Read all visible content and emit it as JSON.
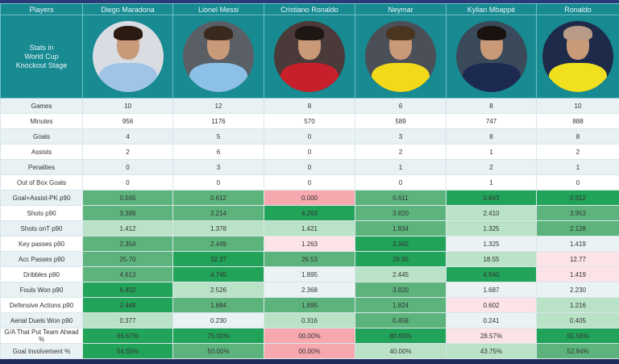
{
  "header": {
    "players_label": "Players",
    "stats_label_lines": [
      "Stats in",
      "World Cup",
      "Knockout Stage"
    ],
    "players": [
      {
        "name": "Diego Maradona",
        "photo": "maradona-photo",
        "bg": "#d9dde3",
        "shirt": "#9fc4e8",
        "hair": "#2a1a12"
      },
      {
        "name": "Lionel Messi",
        "photo": "messi-photo",
        "bg": "#5a5f66",
        "shirt": "#8cc0e6",
        "hair": "#3a2a1e"
      },
      {
        "name": "Cristiano Ronaldo",
        "photo": "cristiano-photo",
        "bg": "#4a3a3a",
        "shirt": "#c8202a",
        "hair": "#1e1612"
      },
      {
        "name": "Neymar",
        "photo": "neymar-photo",
        "bg": "#4a4f58",
        "shirt": "#f2d91a",
        "hair": "#4a3520"
      },
      {
        "name": "Kylian Mbappé",
        "photo": "mbappe-photo",
        "bg": "#3b4a5a",
        "shirt": "#1c2a52",
        "hair": "#1a120e"
      },
      {
        "name": "Ronaldo",
        "photo": "ronaldo-photo",
        "bg": "#1e2a4a",
        "shirt": "#f0e020",
        "hair": "#b89a88"
      }
    ]
  },
  "colors": {
    "header_teal": "#178a92",
    "navy": "#1e2a5a",
    "green_strong": "#22a35a",
    "green_mid": "#5cb47c",
    "green_light": "#b9e2c6",
    "neutral": "#eaf2f4",
    "pink_light": "#fbe3e7",
    "pink": "#f6a8ae"
  },
  "rows": [
    {
      "label": "Games",
      "values": [
        "10",
        "12",
        "8",
        "6",
        "8",
        "10"
      ],
      "colors": null
    },
    {
      "label": "Minutes",
      "values": [
        "956",
        "1176",
        "570",
        "589",
        "747",
        "888"
      ],
      "colors": null
    },
    {
      "label": "Goals",
      "values": [
        "4",
        "5",
        "0",
        "3",
        "8",
        "8"
      ],
      "colors": null
    },
    {
      "label": "Assists",
      "values": [
        "2",
        "6",
        "0",
        "2",
        "1",
        "2"
      ],
      "colors": null
    },
    {
      "label": "Penalties",
      "values": [
        "0",
        "3",
        "0",
        "1",
        "2",
        "1"
      ],
      "colors": null
    },
    {
      "label": "Out of Box Goals",
      "values": [
        "0",
        "0",
        "0",
        "0",
        "1",
        "0"
      ],
      "colors": null
    },
    {
      "label": "Goal+Assist-PK p90",
      "values": [
        "0.565",
        "0.612",
        "0.000",
        "0.611",
        "0.843",
        "0.912"
      ],
      "colors": [
        "#5cb47c",
        "#5cb47c",
        "#f6a8ae",
        "#5cb47c",
        "#22a35a",
        "#22a35a"
      ]
    },
    {
      "label": "Shots p90",
      "values": [
        "3.389",
        "3.214",
        "4.263",
        "3.820",
        "2.410",
        "3.953"
      ],
      "colors": [
        "#5cb47c",
        "#5cb47c",
        "#22a35a",
        "#5cb47c",
        "#b9e2c6",
        "#5cb47c"
      ]
    },
    {
      "label": "Shots onT p90",
      "values": [
        "1.412",
        "1.378",
        "1.421",
        "1.834",
        "1.325",
        "2.128"
      ],
      "colors": [
        "#b9e2c6",
        "#b9e2c6",
        "#b9e2c6",
        "#5cb47c",
        "#b9e2c6",
        "#5cb47c"
      ]
    },
    {
      "label": "Key passes p90",
      "values": [
        "2.354",
        "2.449",
        "1.263",
        "3.362",
        "1.325",
        "1.419"
      ],
      "colors": [
        "#5cb47c",
        "#5cb47c",
        "#fbe3e7",
        "#22a35a",
        "#eaf2f4",
        "#eaf2f4"
      ]
    },
    {
      "label": "Acc Passes p90",
      "values": [
        "25.70",
        "32.37",
        "26.53",
        "29.95",
        "18.55",
        "12.77"
      ],
      "colors": [
        "#5cb47c",
        "#22a35a",
        "#5cb47c",
        "#22a35a",
        "#b9e2c6",
        "#fbe3e7"
      ]
    },
    {
      "label": "Dribbles p90",
      "values": [
        "4.613",
        "4.745",
        "1.895",
        "2.445",
        "4.940",
        "1.419"
      ],
      "colors": [
        "#5cb47c",
        "#22a35a",
        "#eaf2f4",
        "#b9e2c6",
        "#22a35a",
        "#fbe3e7"
      ]
    },
    {
      "label": "Fouls Won p90",
      "values": [
        "6.402",
        "2.526",
        "2.368",
        "3.820",
        "1.687",
        "2.230"
      ],
      "colors": [
        "#22a35a",
        "#b9e2c6",
        "#eaf2f4",
        "#5cb47c",
        "#eaf2f4",
        "#eaf2f4"
      ]
    },
    {
      "label": "Defensive Actions p90",
      "values": [
        "2.448",
        "1.684",
        "1.895",
        "1.824",
        "0.602",
        "1.216"
      ],
      "colors": [
        "#22a35a",
        "#5cb47c",
        "#5cb47c",
        "#5cb47c",
        "#fbe3e7",
        "#b9e2c6"
      ]
    },
    {
      "label": "Aerial Duels Won p90",
      "values": [
        "0.377",
        "0.230",
        "0.316",
        "0.458",
        "0.241",
        "0.405"
      ],
      "colors": [
        "#b9e2c6",
        "#eaf2f4",
        "#b9e2c6",
        "#5cb47c",
        "#eaf2f4",
        "#b9e2c6"
      ]
    },
    {
      "label": "G/A That Put Team Ahead %",
      "values": [
        "66.67%",
        "75.00%",
        "00.00%",
        "80.00%",
        "28.57%",
        "55.56%"
      ],
      "colors": [
        "#22a35a",
        "#22a35a",
        "#f6a8ae",
        "#22a35a",
        "#fbe3e7",
        "#22a35a"
      ]
    },
    {
      "label": "Goal Involvement %",
      "values": [
        "54.55%",
        "50.00%",
        "00.00%",
        "40.00%",
        "43.75%",
        "52.94%"
      ],
      "colors": [
        "#22a35a",
        "#5cb47c",
        "#f6a8ae",
        "#b9e2c6",
        "#b9e2c6",
        "#5cb47c"
      ]
    }
  ]
}
